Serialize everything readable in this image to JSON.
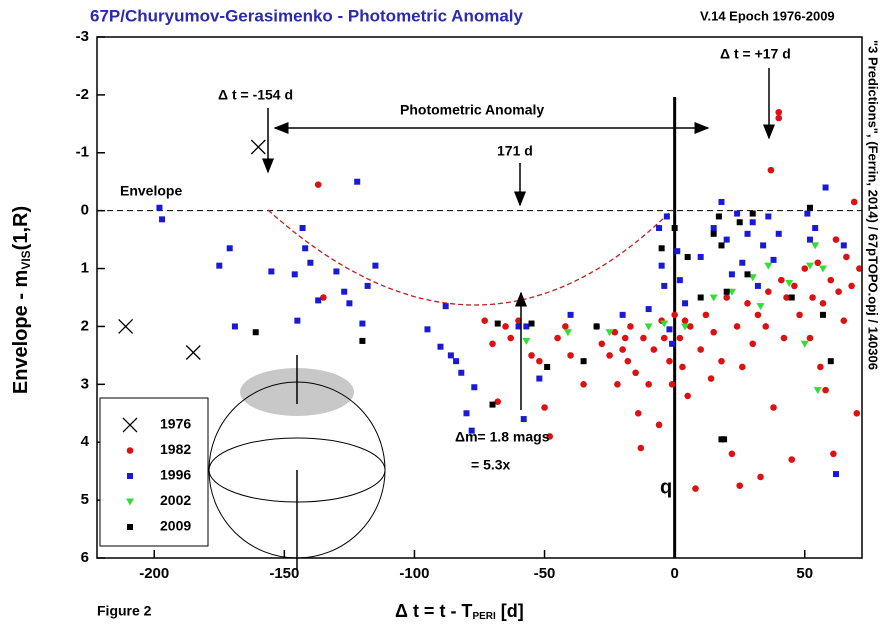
{
  "chart_data": {
    "type": "scatter",
    "title": "67P/Churyumov-Gerasimenko - Photometric Anomaly",
    "subtitle": "V.14  Epoch 1976-2009",
    "y_label": {
      "main": "Envelope - m",
      "sub": "VIS",
      "tail": "(1,R)"
    },
    "x_label": {
      "main": "Δ t = t - T",
      "sub": "PERI",
      "tail": " [d]"
    },
    "side_note": "\"3 Predictions\", (Ferrin, 2014) / 67pTOPO.opj / 140306",
    "figure_label": "Figure 2",
    "annotations": [
      "Δ t = -154 d",
      "Photometric Anomaly",
      "171 d",
      "Envelope",
      "Δ t = +17 d",
      "Δm= 1.8 mags",
      "= 5.3x",
      "q"
    ],
    "xlim": [
      -222,
      72
    ],
    "xticks": [
      -200,
      -150,
      -100,
      -50,
      0,
      50
    ],
    "ylim": [
      6,
      -3
    ],
    "yticks": [
      -3,
      -2,
      -1,
      0,
      1,
      2,
      3,
      4,
      5,
      6
    ],
    "series": [
      {
        "name": "1976",
        "marker": "cross",
        "color": "#000000",
        "x": [
          -211,
          -185,
          -160
        ],
        "y": [
          2.0,
          2.45,
          -1.1
        ]
      },
      {
        "name": "1982",
        "marker": "circle",
        "color": "#dd1111",
        "x": [
          -137,
          -135,
          -73,
          -70,
          -68,
          -65,
          -60,
          -55,
          -50,
          -48,
          -45,
          -42,
          -40,
          -35,
          -30,
          -28,
          -25,
          -23,
          -22,
          -20,
          -19,
          -18,
          -17,
          -15,
          -14,
          -13,
          -12,
          -10,
          -8,
          -6,
          -5,
          -4,
          -2,
          -1,
          0,
          2,
          3,
          4,
          5,
          6,
          8,
          10,
          12,
          14,
          15,
          18,
          20,
          22,
          24,
          25,
          26,
          28,
          30,
          32,
          33,
          35,
          36,
          37,
          38,
          40,
          40,
          41,
          42,
          43,
          45,
          46,
          48,
          50,
          52,
          53,
          55,
          56,
          57,
          58,
          60,
          62,
          63,
          65,
          66,
          68,
          69,
          70,
          71,
          61,
          -52,
          -63
        ],
        "y": [
          -0.45,
          1.5,
          1.9,
          2.3,
          3.3,
          2.0,
          1.9,
          2.5,
          3.4,
          3.9,
          2.2,
          2.0,
          2.5,
          3.0,
          2.0,
          2.3,
          2.5,
          2.1,
          3.0,
          2.4,
          2.2,
          2.6,
          2.0,
          2.8,
          3.5,
          4.1,
          2.2,
          3.0,
          2.4,
          3.7,
          1.9,
          2.2,
          2.6,
          3.0,
          1.8,
          2.2,
          2.7,
          1.9,
          3.2,
          2.0,
          4.8,
          2.4,
          1.8,
          2.9,
          2.1,
          2.6,
          1.5,
          4.2,
          2.0,
          4.75,
          2.7,
          1.6,
          2.3,
          1.8,
          4.6,
          2.0,
          1.4,
          -0.7,
          3.4,
          -1.6,
          -1.7,
          1.2,
          2.2,
          1.5,
          4.3,
          1.3,
          1.8,
          1.0,
          2.2,
          1.5,
          0.9,
          2.7,
          1.6,
          3.1,
          1.2,
          0.5,
          1.4,
          1.9,
          0.8,
          1.3,
          -0.15,
          3.5,
          1.0,
          4.2,
          2.6,
          2.2
        ]
      },
      {
        "name": "1996",
        "marker": "square",
        "color": "#1a1ad6",
        "x": [
          -198,
          -197,
          -175,
          -171,
          -169,
          -155,
          -146,
          -145,
          -143,
          -142,
          -140,
          -137,
          -130,
          -127,
          -125,
          -122,
          -120,
          -118,
          -115,
          -95,
          -90,
          -88,
          -86,
          -84,
          -82,
          -80,
          -78,
          -77,
          -60,
          -58,
          -57,
          -52,
          -40,
          -20,
          -10,
          -6,
          -5,
          -4,
          -3,
          -2,
          -1,
          1,
          2,
          4,
          10,
          15,
          18,
          20,
          22,
          24,
          26,
          28,
          30,
          32,
          34,
          36,
          38,
          40,
          51,
          52,
          54,
          58,
          62,
          65
        ],
        "y": [
          -0.05,
          0.15,
          0.95,
          0.65,
          2.0,
          1.05,
          1.1,
          1.9,
          0.3,
          0.65,
          0.9,
          1.55,
          1.05,
          1.4,
          1.6,
          -0.5,
          1.95,
          1.3,
          0.95,
          2.05,
          2.35,
          1.65,
          2.5,
          2.6,
          2.8,
          3.5,
          3.8,
          3.05,
          2.0,
          3.6,
          2.0,
          2.9,
          1.8,
          1.8,
          1.7,
          0.3,
          0.95,
          1.3,
          0.1,
          2.05,
          2.3,
          0.7,
          1.2,
          1.6,
          0.8,
          0.3,
          -0.15,
          0.5,
          1.1,
          0.05,
          0.9,
          0.4,
          0.2,
          1.3,
          0.6,
          0.1,
          0.85,
          0.4,
          0.05,
          0.5,
          0.3,
          -0.4,
          4.55,
          0.6
        ]
      },
      {
        "name": "2002",
        "marker": "triangle",
        "color": "#33dd33",
        "x": [
          -57,
          -41,
          -25,
          -10,
          -4,
          4,
          15,
          22,
          30,
          33,
          36,
          44,
          50,
          52,
          54,
          55,
          57
        ],
        "y": [
          2.25,
          2.1,
          2.1,
          2.0,
          1.95,
          2.0,
          1.5,
          1.4,
          1.15,
          1.65,
          0.95,
          1.25,
          2.3,
          0.95,
          0.6,
          3.1,
          1.0
        ]
      },
      {
        "name": "2009",
        "marker": "square",
        "color": "#000000",
        "x": [
          -161,
          -120,
          -70,
          -68,
          -55,
          -49,
          -35,
          -30,
          -5,
          0,
          5,
          10,
          15,
          17,
          18,
          20,
          25,
          28,
          30,
          45,
          52,
          57,
          60,
          18,
          19
        ],
        "y": [
          2.1,
          2.25,
          3.35,
          1.95,
          1.95,
          2.7,
          2.6,
          2.0,
          0.65,
          0.3,
          0.8,
          1.5,
          0.4,
          0.1,
          0.6,
          1.4,
          0.2,
          1.1,
          0.05,
          1.5,
          -0.05,
          1.8,
          2.6,
          3.95,
          3.95
        ]
      }
    ]
  }
}
